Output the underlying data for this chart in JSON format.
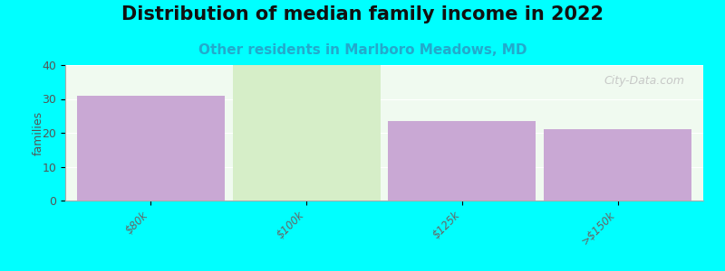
{
  "title": "Distribution of median family income in 2022",
  "subtitle": "Other residents in Marlboro Meadows, MD",
  "categories": [
    "$80k",
    "$100k",
    "$125k",
    ">$150k"
  ],
  "values": [
    31,
    40,
    23.5,
    21
  ],
  "bar_colors": [
    "#c9a8d4",
    "#d6eec8",
    "#c9a8d4",
    "#c9a8d4"
  ],
  "ylabel": "families",
  "ylim": [
    0,
    40
  ],
  "yticks": [
    0,
    10,
    20,
    30,
    40
  ],
  "background_color": "#00FFFF",
  "plot_bg_color": "#f0faf0",
  "title_fontsize": 15,
  "subtitle_fontsize": 11,
  "subtitle_color": "#22AACC",
  "watermark": "City-Data.com"
}
